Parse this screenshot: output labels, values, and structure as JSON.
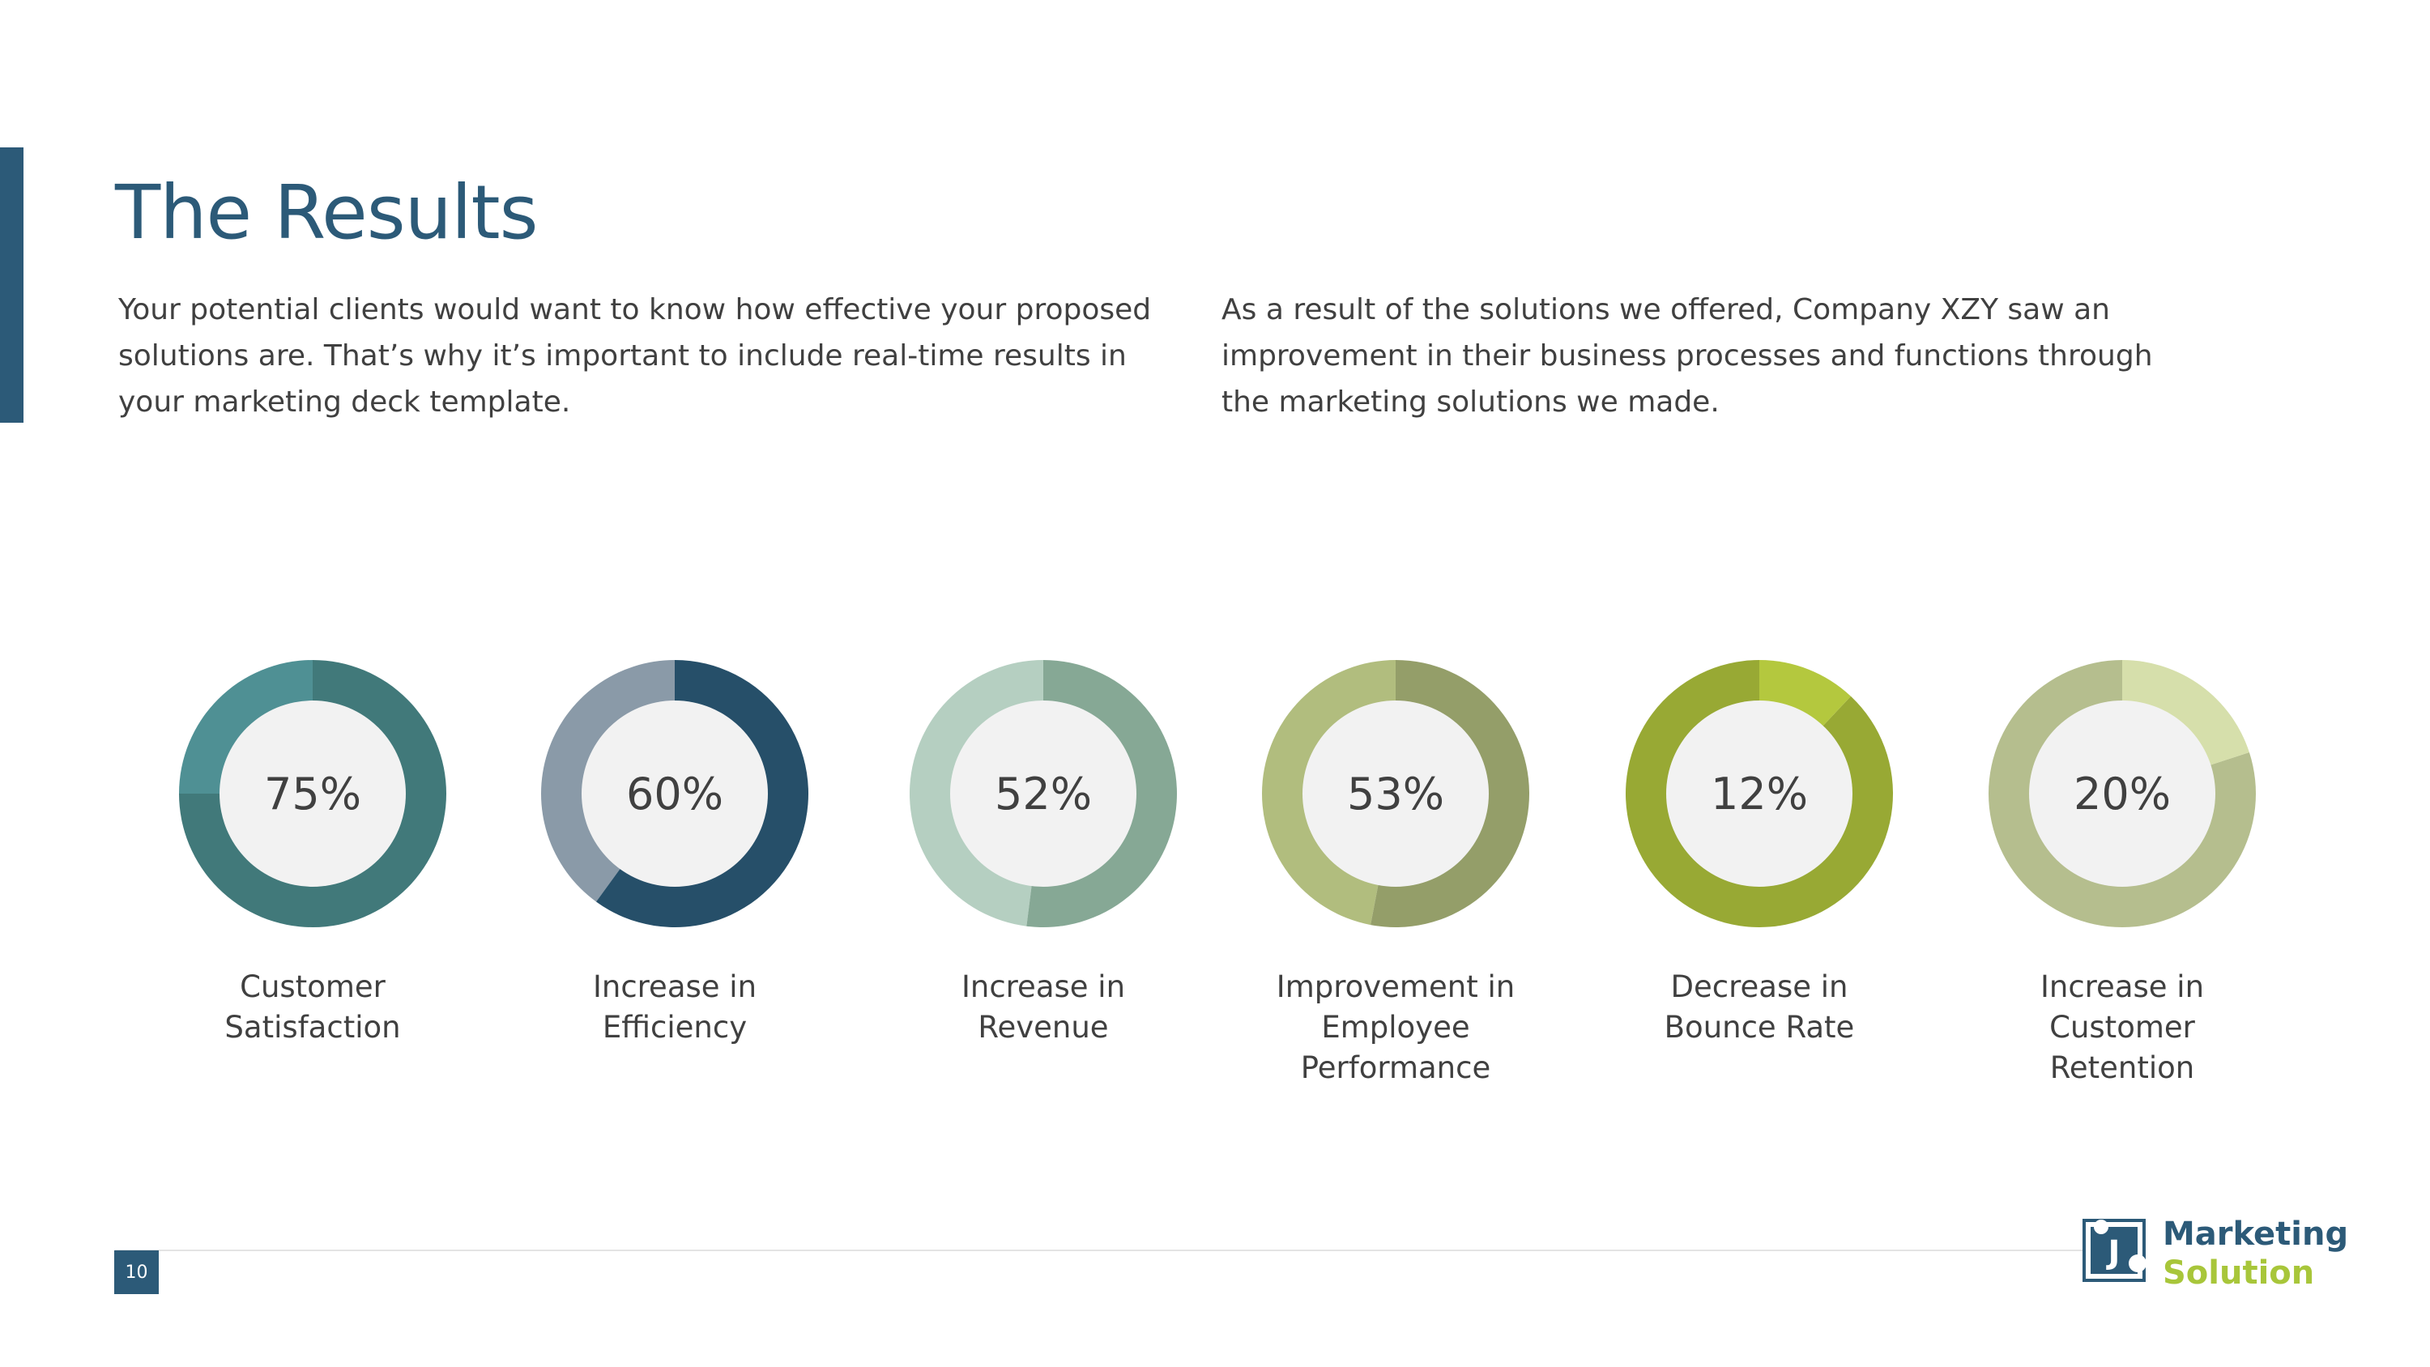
{
  "slide": {
    "title": "The Results",
    "intro_left": "Your potential clients would want to know how effective your proposed solutions are. That’s why it’s important to include real-time results in your marketing deck template.",
    "intro_right": "As a result of the solutions we offered, Company XZY saw an improvement in their business processes and functions through the marketing solutions we made.",
    "page_number": "10"
  },
  "logo": {
    "line1": "Marketing",
    "line2": "Solution",
    "mark_letter": "J",
    "colors": {
      "blue": "#2c5a78",
      "green": "#a8c63a"
    }
  },
  "chart_data": [
    {
      "type": "pie",
      "value": 75,
      "display": "75%",
      "label": "Customer\nSatisfaction",
      "colors": {
        "value": "#41797a",
        "remainder": "#4f9094"
      }
    },
    {
      "type": "pie",
      "value": 60,
      "display": "60%",
      "label": "Increase in\nEfficiency",
      "colors": {
        "value": "#264f69",
        "remainder": "#8a9aa8"
      }
    },
    {
      "type": "pie",
      "value": 52,
      "display": "52%",
      "label": "Increase in\nRevenue",
      "colors": {
        "value": "#86a895",
        "remainder": "#b5cfc1"
      }
    },
    {
      "type": "pie",
      "value": 53,
      "display": "53%",
      "label": "Improvement in\nEmployee\nPerformance",
      "colors": {
        "value": "#949e69",
        "remainder": "#b1bd7e"
      }
    },
    {
      "type": "pie",
      "value": 12,
      "display": "12%",
      "label": "Decrease in\nBounce Rate",
      "colors": {
        "value": "#b4c83e",
        "remainder": "#98a934"
      }
    },
    {
      "type": "pie",
      "value": 20,
      "display": "20%",
      "label": "Increase in\nCustomer\nRetention",
      "colors": {
        "value": "#d6dfab",
        "remainder": "#b5be8e"
      }
    }
  ]
}
